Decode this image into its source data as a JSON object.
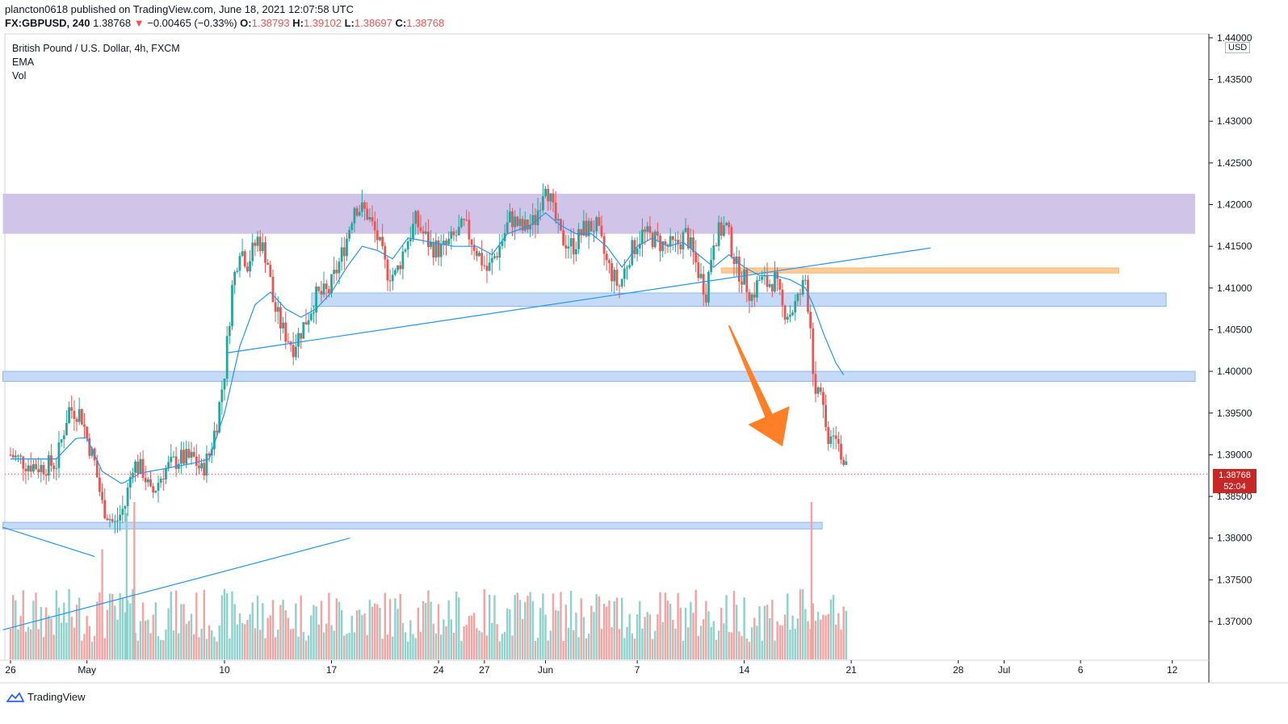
{
  "header": {
    "publisher_line": "plancton0618 published on TradingView.com, June 18, 2021 12:07:58 UTC",
    "symbol": "FX:GBPUSD, 240",
    "last": "1.38768",
    "change": "−0.00465 (−0.33%)",
    "open_label": "O:",
    "open": "1.38793",
    "high_label": "H:",
    "high": "1.39102",
    "low_label": "L:",
    "low": "1.38697",
    "close_label": "C:",
    "close": "1.38768"
  },
  "legend": {
    "title": "British Pound / U.S. Dollar, 4h, FXCM",
    "ema": "EMA",
    "vol": "Vol"
  },
  "price_scale": {
    "currency": "USD",
    "last_price": "1.38768",
    "countdown": "52:04"
  },
  "footer": {
    "brand": "TradingView"
  },
  "colors": {
    "up": "#26a69a",
    "down": "#ef5350",
    "vol_up": "#8fd1cb",
    "vol_down": "#f4a3a3",
    "ema": "#2196f3",
    "resistance_zone": "#d1c4e9",
    "support_zone": "#c5daf7",
    "orange_zone": "#ffcc99",
    "arrow": "#ff7f27"
  },
  "chart_data": {
    "type": "candlestick",
    "title": "British Pound / U.S. Dollar, 4h, FXCM",
    "ylim": [
      1.366,
      1.4405
    ],
    "y_ticks": [
      1.37,
      1.375,
      1.38,
      1.385,
      1.39,
      1.395,
      1.4,
      1.405,
      1.41,
      1.415,
      1.42,
      1.425,
      1.43,
      1.435,
      1.44
    ],
    "y_tick_labels": [
      "1.37000",
      "1.37500",
      "1.38000",
      "1.38500",
      "1.39000",
      "1.39500",
      "1.40000",
      "1.40500",
      "1.41000",
      "1.41500",
      "1.42000",
      "1.42500",
      "1.43000",
      "1.43500",
      "1.44000"
    ],
    "x_ticks": [
      {
        "label": "26",
        "day": 0
      },
      {
        "label": "May",
        "day": 5
      },
      {
        "label": "10",
        "day": 14
      },
      {
        "label": "17",
        "day": 21
      },
      {
        "label": "24",
        "day": 28
      },
      {
        "label": "27",
        "day": 31
      },
      {
        "label": "Jun",
        "day": 35
      },
      {
        "label": "7",
        "day": 41
      },
      {
        "label": "14",
        "day": 48
      },
      {
        "label": "21",
        "day": 55
      },
      {
        "label": "28",
        "day": 62
      },
      {
        "label": "Jul",
        "day": 65
      },
      {
        "label": "6",
        "day": 70
      },
      {
        "label": "12",
        "day": 76
      }
    ],
    "zones": [
      {
        "name": "resistance-zone",
        "y1": 1.4165,
        "y2": 1.4213,
        "x1": -0.5,
        "x2": 77.5,
        "color": "#d1c4e9"
      },
      {
        "name": "support-zone-upper",
        "y1": 1.4078,
        "y2": 1.4094,
        "x1": 19.7,
        "x2": 75.6,
        "color": "#c5daf7"
      },
      {
        "name": "support-zone-middle",
        "y1": 1.3988,
        "y2": 1.4,
        "x1": -0.5,
        "x2": 77.5,
        "color": "#c5daf7"
      },
      {
        "name": "support-zone-lower",
        "y1": 1.3811,
        "y2": 1.3819,
        "x1": -0.5,
        "x2": 53.1,
        "color": "#c5daf7"
      },
      {
        "name": "orange-zone",
        "y1": 1.4118,
        "y2": 1.4124,
        "x1": 46.5,
        "x2": 72.5,
        "color": "#ffcc99"
      }
    ],
    "trendlines": [
      {
        "name": "rising-trendline",
        "x1": 14.1,
        "y1": 1.4022,
        "x2": 60.2,
        "y2": 1.4148
      },
      {
        "name": "falling-trendline-left",
        "x1": -0.5,
        "y1": 1.3813,
        "x2": 5.5,
        "y2": 1.3778
      },
      {
        "name": "volume-trendline",
        "x1": -0.5,
        "y1": 1.369,
        "x2": 22.2,
        "y2": 1.38
      }
    ],
    "arrow": {
      "x1": 47.0,
      "y1": 1.4055,
      "x2": 50.5,
      "y2": 1.391
    },
    "anchors": [
      {
        "day": 0.0,
        "price": 1.39
      },
      {
        "day": 1.0,
        "price": 1.389
      },
      {
        "day": 2.0,
        "price": 1.3885
      },
      {
        "day": 3.0,
        "price": 1.389
      },
      {
        "day": 3.8,
        "price": 1.3955
      },
      {
        "day": 4.6,
        "price": 1.395
      },
      {
        "day": 5.0,
        "price": 1.392
      },
      {
        "day": 5.5,
        "price": 1.389
      },
      {
        "day": 6.0,
        "price": 1.384
      },
      {
        "day": 6.8,
        "price": 1.3815
      },
      {
        "day": 7.5,
        "price": 1.384
      },
      {
        "day": 8.0,
        "price": 1.389
      },
      {
        "day": 8.7,
        "price": 1.388
      },
      {
        "day": 9.2,
        "price": 1.385
      },
      {
        "day": 10.0,
        "price": 1.388
      },
      {
        "day": 11.0,
        "price": 1.3895
      },
      {
        "day": 12.0,
        "price": 1.3895
      },
      {
        "day": 12.5,
        "price": 1.388
      },
      {
        "day": 13.0,
        "price": 1.39
      },
      {
        "day": 13.5,
        "price": 1.394
      },
      {
        "day": 14.0,
        "price": 1.4
      },
      {
        "day": 14.5,
        "price": 1.41
      },
      {
        "day": 15.0,
        "price": 1.415
      },
      {
        "day": 15.5,
        "price": 1.413
      },
      {
        "day": 16.2,
        "price": 1.416
      },
      {
        "day": 16.8,
        "price": 1.4135
      },
      {
        "day": 17.2,
        "price": 1.408
      },
      {
        "day": 17.8,
        "price": 1.405
      },
      {
        "day": 18.5,
        "price": 1.403
      },
      {
        "day": 19.3,
        "price": 1.406
      },
      {
        "day": 20.0,
        "price": 1.409
      },
      {
        "day": 20.8,
        "price": 1.4095
      },
      {
        "day": 21.5,
        "price": 1.413
      },
      {
        "day": 22.0,
        "price": 1.416
      },
      {
        "day": 22.5,
        "price": 1.42
      },
      {
        "day": 23.3,
        "price": 1.419
      },
      {
        "day": 24.0,
        "price": 1.416
      },
      {
        "day": 24.6,
        "price": 1.412
      },
      {
        "day": 25.2,
        "price": 1.4115
      },
      {
        "day": 25.8,
        "price": 1.415
      },
      {
        "day": 26.5,
        "price": 1.418
      },
      {
        "day": 27.0,
        "price": 1.4165
      },
      {
        "day": 27.5,
        "price": 1.415
      },
      {
        "day": 28.2,
        "price": 1.4145
      },
      {
        "day": 29.0,
        "price": 1.416
      },
      {
        "day": 29.7,
        "price": 1.4175
      },
      {
        "day": 30.5,
        "price": 1.4145
      },
      {
        "day": 31.2,
        "price": 1.412
      },
      {
        "day": 32.0,
        "price": 1.415
      },
      {
        "day": 32.7,
        "price": 1.4185
      },
      {
        "day": 33.5,
        "price": 1.417
      },
      {
        "day": 34.3,
        "price": 1.418
      },
      {
        "day": 35.0,
        "price": 1.423
      },
      {
        "day": 35.5,
        "price": 1.419
      },
      {
        "day": 36.0,
        "price": 1.416
      },
      {
        "day": 36.8,
        "price": 1.415
      },
      {
        "day": 37.5,
        "price": 1.417
      },
      {
        "day": 38.3,
        "price": 1.4175
      },
      {
        "day": 39.0,
        "price": 1.413
      },
      {
        "day": 39.8,
        "price": 1.41
      },
      {
        "day": 40.5,
        "price": 1.414
      },
      {
        "day": 41.3,
        "price": 1.4165
      },
      {
        "day": 42.0,
        "price": 1.416
      },
      {
        "day": 42.8,
        "price": 1.415
      },
      {
        "day": 43.5,
        "price": 1.415
      },
      {
        "day": 44.2,
        "price": 1.4165
      },
      {
        "day": 45.0,
        "price": 1.412
      },
      {
        "day": 45.5,
        "price": 1.4095
      },
      {
        "day": 46.0,
        "price": 1.416
      },
      {
        "day": 46.8,
        "price": 1.4175
      },
      {
        "day": 47.5,
        "price": 1.4125
      },
      {
        "day": 48.0,
        "price": 1.411
      },
      {
        "day": 48.5,
        "price": 1.409
      },
      {
        "day": 49.0,
        "price": 1.411
      },
      {
        "day": 49.5,
        "price": 1.4105
      },
      {
        "day": 50.0,
        "price": 1.411
      },
      {
        "day": 50.5,
        "price": 1.4075
      },
      {
        "day": 51.0,
        "price": 1.407
      },
      {
        "day": 51.5,
        "price": 1.4085
      },
      {
        "day": 52.0,
        "price": 1.411
      },
      {
        "day": 52.3,
        "price": 1.406
      },
      {
        "day": 52.6,
        "price": 1.398
      },
      {
        "day": 53.0,
        "price": 1.3985
      },
      {
        "day": 53.4,
        "price": 1.392
      },
      {
        "day": 53.9,
        "price": 1.3935
      },
      {
        "day": 54.4,
        "price": 1.39
      },
      {
        "day": 54.7,
        "price": 1.38768
      }
    ],
    "ema_anchors": [
      {
        "day": 0.0,
        "price": 1.3895
      },
      {
        "day": 3.0,
        "price": 1.3895
      },
      {
        "day": 4.3,
        "price": 1.392
      },
      {
        "day": 5.0,
        "price": 1.392
      },
      {
        "day": 6.0,
        "price": 1.388
      },
      {
        "day": 7.3,
        "price": 1.3865
      },
      {
        "day": 8.5,
        "price": 1.3878
      },
      {
        "day": 10.0,
        "price": 1.3883
      },
      {
        "day": 12.0,
        "price": 1.389
      },
      {
        "day": 13.0,
        "price": 1.3895
      },
      {
        "day": 14.0,
        "price": 1.395
      },
      {
        "day": 15.0,
        "price": 1.403
      },
      {
        "day": 16.0,
        "price": 1.408
      },
      {
        "day": 17.0,
        "price": 1.4095
      },
      {
        "day": 18.0,
        "price": 1.4075
      },
      {
        "day": 19.0,
        "price": 1.4065
      },
      {
        "day": 20.0,
        "price": 1.4075
      },
      {
        "day": 21.0,
        "price": 1.4095
      },
      {
        "day": 22.0,
        "price": 1.4125
      },
      {
        "day": 23.0,
        "price": 1.415
      },
      {
        "day": 24.0,
        "price": 1.4145
      },
      {
        "day": 25.0,
        "price": 1.4135
      },
      {
        "day": 26.0,
        "price": 1.416
      },
      {
        "day": 27.5,
        "price": 1.4155
      },
      {
        "day": 29.0,
        "price": 1.415
      },
      {
        "day": 30.5,
        "price": 1.415
      },
      {
        "day": 31.5,
        "price": 1.414
      },
      {
        "day": 32.5,
        "price": 1.4165
      },
      {
        "day": 34.0,
        "price": 1.4175
      },
      {
        "day": 35.0,
        "price": 1.419
      },
      {
        "day": 36.0,
        "price": 1.4175
      },
      {
        "day": 37.0,
        "price": 1.4165
      },
      {
        "day": 38.0,
        "price": 1.4165
      },
      {
        "day": 39.0,
        "price": 1.415
      },
      {
        "day": 40.0,
        "price": 1.4125
      },
      {
        "day": 41.0,
        "price": 1.415
      },
      {
        "day": 42.0,
        "price": 1.416
      },
      {
        "day": 43.0,
        "price": 1.415
      },
      {
        "day": 44.0,
        "price": 1.4155
      },
      {
        "day": 45.0,
        "price": 1.414
      },
      {
        "day": 46.0,
        "price": 1.4125
      },
      {
        "day": 47.0,
        "price": 1.414
      },
      {
        "day": 48.0,
        "price": 1.4125
      },
      {
        "day": 49.0,
        "price": 1.4115
      },
      {
        "day": 50.0,
        "price": 1.4115
      },
      {
        "day": 51.0,
        "price": 1.411
      },
      {
        "day": 52.0,
        "price": 1.41
      },
      {
        "day": 52.5,
        "price": 1.408
      },
      {
        "day": 53.3,
        "price": 1.404
      },
      {
        "day": 54.0,
        "price": 1.401
      },
      {
        "day": 54.7,
        "price": 1.399
      }
    ],
    "volume_spikes": [
      {
        "day": 8.1,
        "value": 1.0,
        "up": false
      },
      {
        "day": 6.0,
        "value": 0.7,
        "up": false
      },
      {
        "day": 7.6,
        "value": 0.93,
        "up": true
      },
      {
        "day": 52.4,
        "value": 1.0,
        "up": false
      }
    ]
  }
}
